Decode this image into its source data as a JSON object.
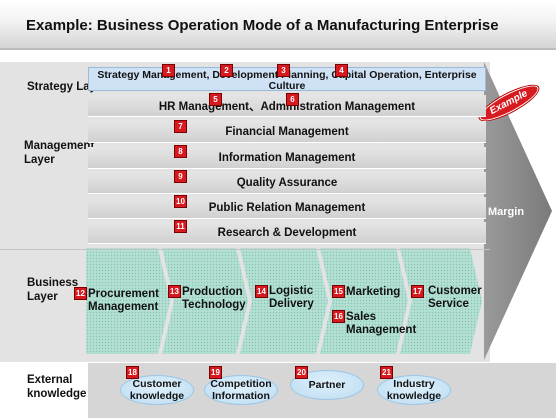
{
  "title": "Example: Business Operation Mode of a Manufacturing Enterprise",
  "stamp": "Example",
  "margin_label": "Margin",
  "layers": {
    "strategy": "Strategy Layer",
    "management": "Management Layer",
    "business": "Business Layer",
    "external": "External knowledge"
  },
  "strategy_text": "Strategy Management, Development Planning, Capital Operation, Enterprise Culture",
  "management_rows": [
    {
      "text": "HR Management、Administration Management"
    },
    {
      "text": "Financial Management"
    },
    {
      "text": "Information Management"
    },
    {
      "text": "Quality Assurance"
    },
    {
      "text": "Public Relation Management"
    },
    {
      "text": "Research & Development"
    }
  ],
  "badges": [
    "1",
    "2",
    "3",
    "4",
    "5",
    "6",
    "7",
    "8",
    "9",
    "10",
    "11",
    "12",
    "13",
    "14",
    "15",
    "16",
    "17",
    "18",
    "19",
    "20",
    "21"
  ],
  "business": [
    {
      "text": "Procurement Management"
    },
    {
      "text": "Production Technology"
    },
    {
      "text": "Logistic Delivery"
    },
    {
      "text": "Marketing"
    },
    {
      "text": "Sales Management"
    },
    {
      "text": "Customer Service"
    }
  ],
  "external": [
    {
      "text": "Customer knowledge"
    },
    {
      "text": "Competition Information"
    },
    {
      "text": "Partner"
    },
    {
      "text": "Industry knowledge"
    }
  ],
  "colors": {
    "badge": "#d71a20",
    "chevron": "#a8d8cc",
    "strategy_bar": "#cfe2f5",
    "arrow": "#8c8c8c"
  }
}
